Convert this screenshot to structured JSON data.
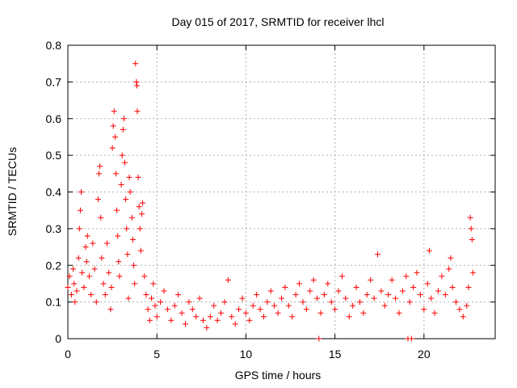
{
  "chart_data": {
    "type": "scatter",
    "title": "Day 015 of 2017, SRMTID for receiver lhcl",
    "xlabel": "GPS time / hours",
    "ylabel": "SRMTID / TECUs",
    "xlim": [
      0,
      24
    ],
    "ylim": [
      0,
      0.8
    ],
    "xticks": [
      0,
      5,
      10,
      15,
      20
    ],
    "xtick_labels": [
      "0",
      "5",
      "10",
      "15",
      "20"
    ],
    "yticks": [
      0,
      0.1,
      0.2,
      0.3,
      0.4,
      0.5,
      0.6,
      0.7,
      0.8
    ],
    "ytick_labels": [
      "0",
      "0.1",
      "0.2",
      "0.3",
      "0.4",
      "0.5",
      "0.6",
      "0.7",
      "0.8"
    ],
    "grid": true,
    "marker": "+",
    "color": "#ff0000",
    "series": [
      {
        "name": "SRMTID",
        "points": [
          [
            0.0,
            0.14
          ],
          [
            0.1,
            0.17
          ],
          [
            0.2,
            0.12
          ],
          [
            0.3,
            0.19
          ],
          [
            0.35,
            0.15
          ],
          [
            0.4,
            0.1
          ],
          [
            0.5,
            0.13
          ],
          [
            0.6,
            0.22
          ],
          [
            0.65,
            0.3
          ],
          [
            0.7,
            0.35
          ],
          [
            0.75,
            0.4
          ],
          [
            0.8,
            0.18
          ],
          [
            0.9,
            0.14
          ],
          [
            1.0,
            0.25
          ],
          [
            1.05,
            0.21
          ],
          [
            1.1,
            0.28
          ],
          [
            1.2,
            0.17
          ],
          [
            1.3,
            0.12
          ],
          [
            1.4,
            0.26
          ],
          [
            1.5,
            0.19
          ],
          [
            1.6,
            0.1
          ],
          [
            1.7,
            0.38
          ],
          [
            1.75,
            0.45
          ],
          [
            1.8,
            0.47
          ],
          [
            1.85,
            0.33
          ],
          [
            1.9,
            0.22
          ],
          [
            2.0,
            0.15
          ],
          [
            2.1,
            0.12
          ],
          [
            2.2,
            0.26
          ],
          [
            2.3,
            0.18
          ],
          [
            2.4,
            0.08
          ],
          [
            2.45,
            0.14
          ],
          [
            2.5,
            0.52
          ],
          [
            2.55,
            0.58
          ],
          [
            2.6,
            0.62
          ],
          [
            2.65,
            0.55
          ],
          [
            2.7,
            0.45
          ],
          [
            2.75,
            0.35
          ],
          [
            2.8,
            0.28
          ],
          [
            2.85,
            0.21
          ],
          [
            2.9,
            0.17
          ],
          [
            3.0,
            0.42
          ],
          [
            3.05,
            0.5
          ],
          [
            3.1,
            0.57
          ],
          [
            3.15,
            0.6
          ],
          [
            3.2,
            0.48
          ],
          [
            3.25,
            0.38
          ],
          [
            3.3,
            0.3
          ],
          [
            3.35,
            0.23
          ],
          [
            3.4,
            0.11
          ],
          [
            3.45,
            0.44
          ],
          [
            3.5,
            0.4
          ],
          [
            3.6,
            0.33
          ],
          [
            3.65,
            0.27
          ],
          [
            3.7,
            0.2
          ],
          [
            3.75,
            0.15
          ],
          [
            3.8,
            0.75
          ],
          [
            3.85,
            0.7
          ],
          [
            3.88,
            0.69
          ],
          [
            3.9,
            0.62
          ],
          [
            3.95,
            0.44
          ],
          [
            4.0,
            0.36
          ],
          [
            4.05,
            0.3
          ],
          [
            4.1,
            0.24
          ],
          [
            4.15,
            0.34
          ],
          [
            4.2,
            0.37
          ],
          [
            4.3,
            0.17
          ],
          [
            4.4,
            0.12
          ],
          [
            4.5,
            0.08
          ],
          [
            4.6,
            0.05
          ],
          [
            4.7,
            0.11
          ],
          [
            4.8,
            0.15
          ],
          [
            4.9,
            0.09
          ],
          [
            5.0,
            0.06
          ],
          [
            5.2,
            0.1
          ],
          [
            5.4,
            0.13
          ],
          [
            5.6,
            0.08
          ],
          [
            5.8,
            0.05
          ],
          [
            6.0,
            0.09
          ],
          [
            6.2,
            0.12
          ],
          [
            6.4,
            0.07
          ],
          [
            6.6,
            0.04
          ],
          [
            6.8,
            0.1
          ],
          [
            7.0,
            0.08
          ],
          [
            7.2,
            0.06
          ],
          [
            7.4,
            0.11
          ],
          [
            7.6,
            0.05
          ],
          [
            7.8,
            0.03
          ],
          [
            8.0,
            0.06
          ],
          [
            8.2,
            0.09
          ],
          [
            8.4,
            0.05
          ],
          [
            8.6,
            0.07
          ],
          [
            8.8,
            0.1
          ],
          [
            9.0,
            0.16
          ],
          [
            9.2,
            0.06
          ],
          [
            9.4,
            0.04
          ],
          [
            9.6,
            0.08
          ],
          [
            9.8,
            0.11
          ],
          [
            10.0,
            0.07
          ],
          [
            10.2,
            0.05
          ],
          [
            10.4,
            0.09
          ],
          [
            10.6,
            0.12
          ],
          [
            10.8,
            0.08
          ],
          [
            11.0,
            0.06
          ],
          [
            11.2,
            0.1
          ],
          [
            11.4,
            0.13
          ],
          [
            11.6,
            0.09
          ],
          [
            11.8,
            0.07
          ],
          [
            12.0,
            0.11
          ],
          [
            12.2,
            0.14
          ],
          [
            12.4,
            0.09
          ],
          [
            12.6,
            0.06
          ],
          [
            12.8,
            0.12
          ],
          [
            13.0,
            0.15
          ],
          [
            13.2,
            0.1
          ],
          [
            13.4,
            0.08
          ],
          [
            13.6,
            0.13
          ],
          [
            13.8,
            0.16
          ],
          [
            14.0,
            0.11
          ],
          [
            14.1,
            0.0
          ],
          [
            14.2,
            0.07
          ],
          [
            14.4,
            0.12
          ],
          [
            14.6,
            0.15
          ],
          [
            14.8,
            0.1
          ],
          [
            15.0,
            0.08
          ],
          [
            15.2,
            0.13
          ],
          [
            15.4,
            0.17
          ],
          [
            15.6,
            0.11
          ],
          [
            15.8,
            0.06
          ],
          [
            16.0,
            0.09
          ],
          [
            16.2,
            0.14
          ],
          [
            16.4,
            0.1
          ],
          [
            16.6,
            0.07
          ],
          [
            16.8,
            0.12
          ],
          [
            17.0,
            0.16
          ],
          [
            17.2,
            0.11
          ],
          [
            17.4,
            0.23
          ],
          [
            17.6,
            0.13
          ],
          [
            17.8,
            0.09
          ],
          [
            18.0,
            0.12
          ],
          [
            18.2,
            0.16
          ],
          [
            18.4,
            0.11
          ],
          [
            18.6,
            0.07
          ],
          [
            18.8,
            0.13
          ],
          [
            19.0,
            0.17
          ],
          [
            19.1,
            0.0
          ],
          [
            19.2,
            0.1
          ],
          [
            19.3,
            0.0
          ],
          [
            19.4,
            0.14
          ],
          [
            19.6,
            0.18
          ],
          [
            19.8,
            0.12
          ],
          [
            20.0,
            0.08
          ],
          [
            20.2,
            0.15
          ],
          [
            20.3,
            0.24
          ],
          [
            20.4,
            0.11
          ],
          [
            20.6,
            0.07
          ],
          [
            20.8,
            0.13
          ],
          [
            21.0,
            0.17
          ],
          [
            21.2,
            0.12
          ],
          [
            21.4,
            0.19
          ],
          [
            21.5,
            0.22
          ],
          [
            21.6,
            0.14
          ],
          [
            21.8,
            0.1
          ],
          [
            22.0,
            0.08
          ],
          [
            22.2,
            0.06
          ],
          [
            22.4,
            0.09
          ],
          [
            22.5,
            0.14
          ],
          [
            22.6,
            0.33
          ],
          [
            22.65,
            0.3
          ],
          [
            22.7,
            0.27
          ],
          [
            22.75,
            0.18
          ]
        ]
      }
    ]
  }
}
